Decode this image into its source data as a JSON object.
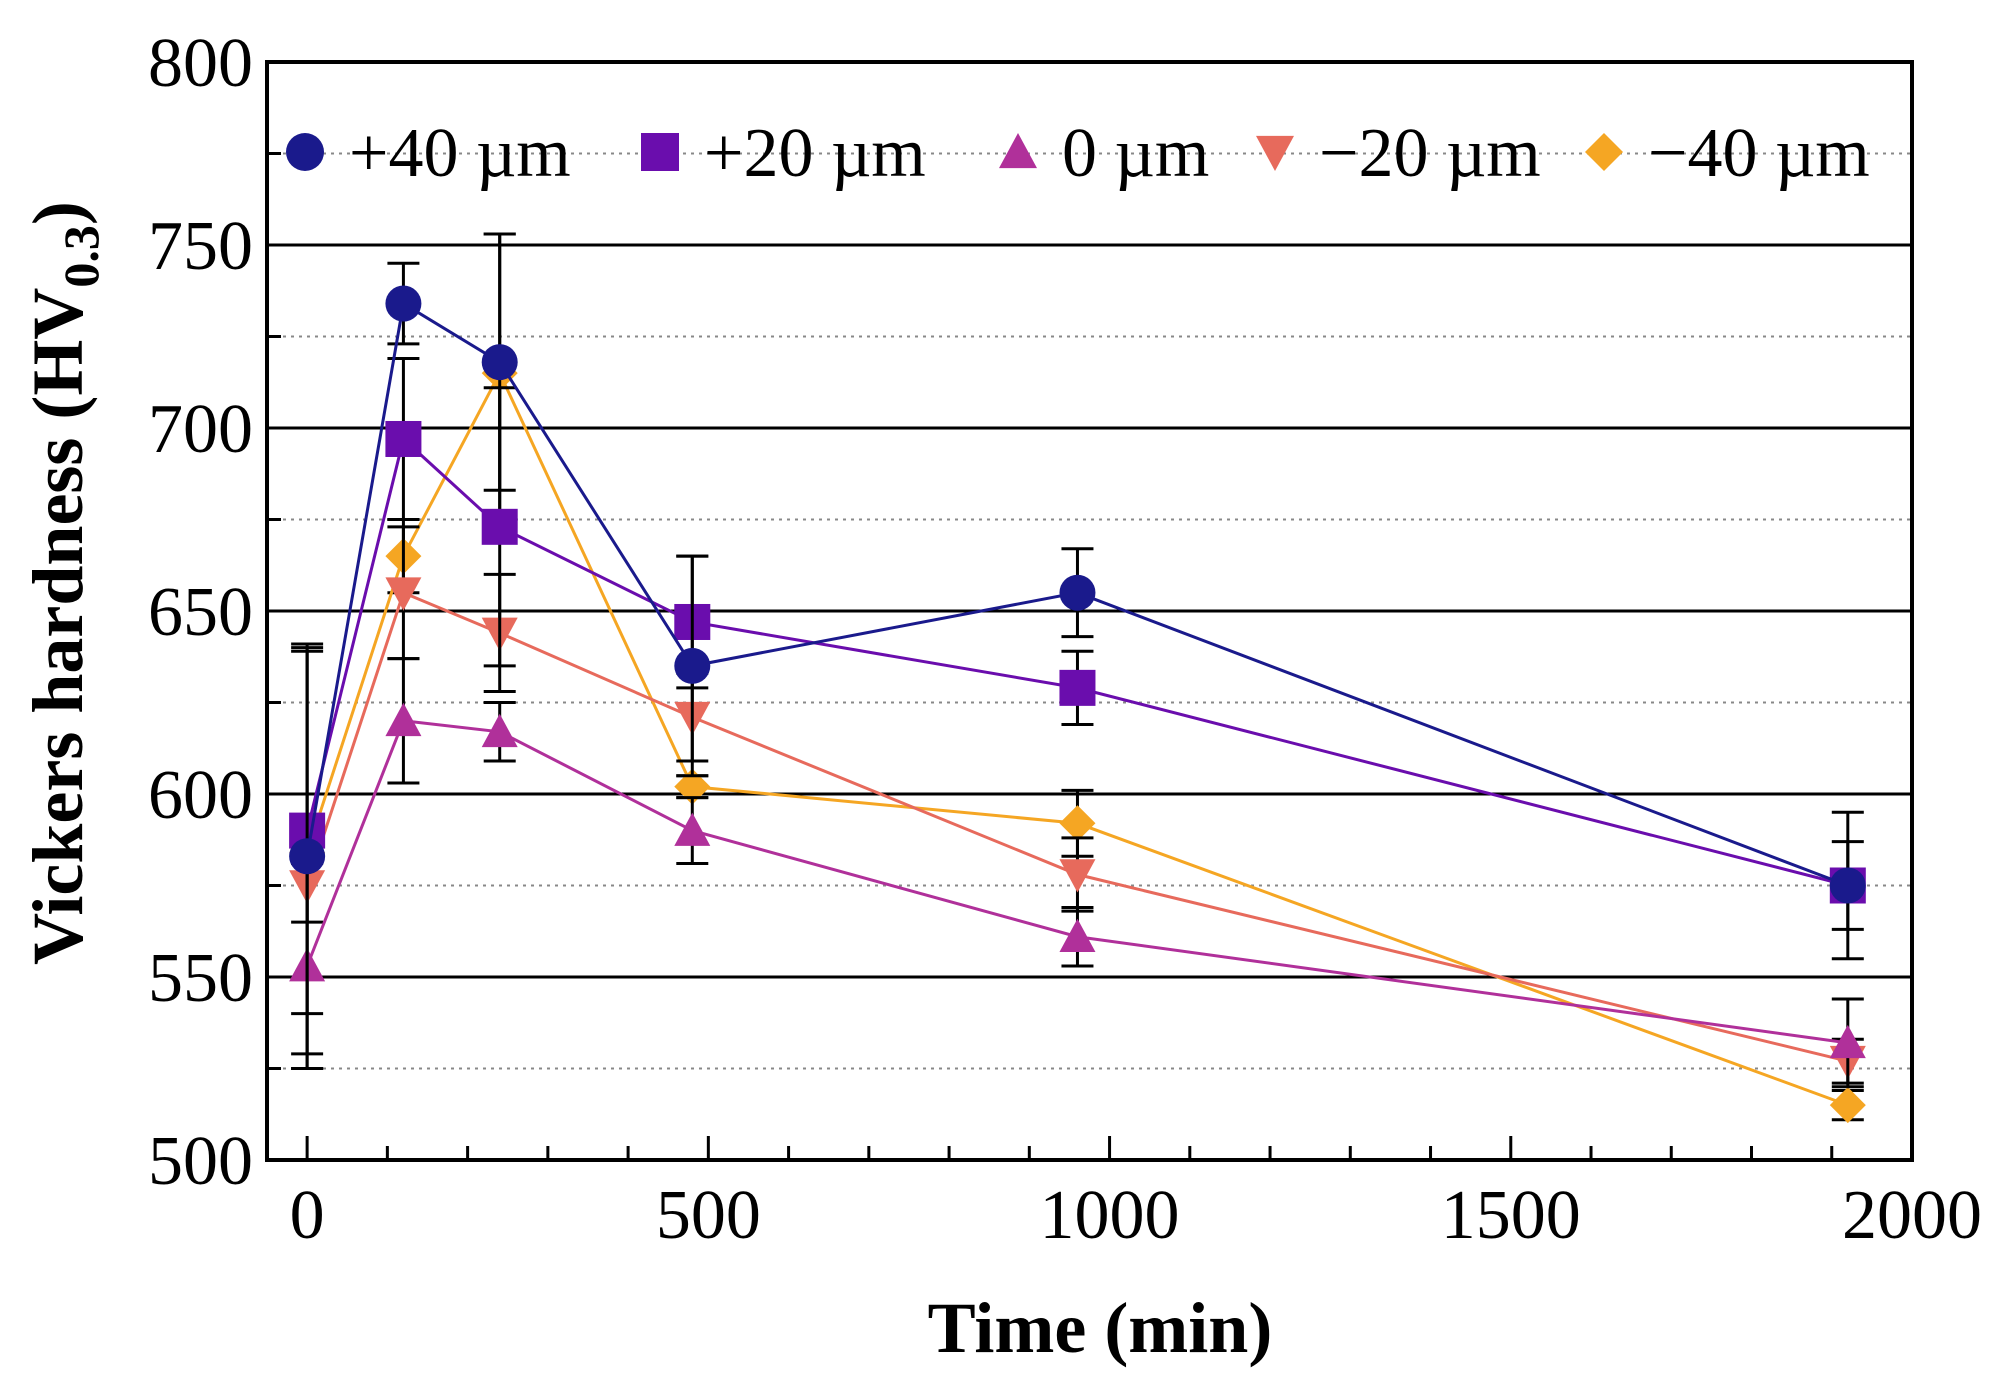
{
  "chart_data": {
    "type": "line",
    "xlabel": "Time (min)",
    "ylabel": "Vickers hardness (HV",
    "ylabel_sub": "0.3",
    "ylabel_close": ")",
    "xlim": [
      -50,
      2000
    ],
    "ylim": [
      500,
      800
    ],
    "xticks": [
      0,
      500,
      1000,
      1500,
      2000
    ],
    "yticks": [
      500,
      550,
      600,
      650,
      700,
      750,
      800
    ],
    "x_tick_labels": [
      "0",
      "500",
      "1000",
      "1500",
      "2000"
    ],
    "y_tick_labels": [
      "500",
      "550",
      "600",
      "650",
      "700",
      "750",
      "800"
    ],
    "x_minor_step": 100,
    "y_minor_step": 25,
    "grid": "major solid, minor dotted (horizontal)",
    "legend_position": "top",
    "x": [
      0,
      120,
      240,
      480,
      960,
      1920
    ],
    "series": [
      {
        "name": "+40 µm",
        "color": "#1a1a8c",
        "marker": "circle",
        "values": [
          583,
          734,
          718,
          635,
          655,
          575
        ],
        "errors": [
          58,
          11,
          35,
          30,
          12,
          20
        ]
      },
      {
        "name": "+20 µm",
        "color": "#6a0dad",
        "marker": "square",
        "values": [
          590,
          697,
          673,
          647,
          629,
          575
        ],
        "errors": [
          50,
          22,
          38,
          18,
          10,
          12
        ]
      },
      {
        "name": "0 µm",
        "color": "#b0309a",
        "marker": "triangle-up",
        "values": [
          553,
          620,
          617,
          590,
          561,
          532
        ],
        "errors": [
          28,
          17,
          8,
          9,
          8,
          12
        ]
      },
      {
        "name": "−20 µm",
        "color": "#e76a5c",
        "marker": "triangle-down",
        "values": [
          575,
          655,
          644,
          621,
          578,
          527
        ],
        "errors": [
          10,
          18,
          16,
          12,
          10,
          6
        ]
      },
      {
        "name": "−40 µm",
        "color": "#f5a623",
        "marker": "diamond",
        "values": [
          584,
          665,
          715,
          602,
          592,
          515
        ],
        "errors": [
          55,
          10,
          38,
          3,
          9,
          4
        ]
      }
    ]
  }
}
